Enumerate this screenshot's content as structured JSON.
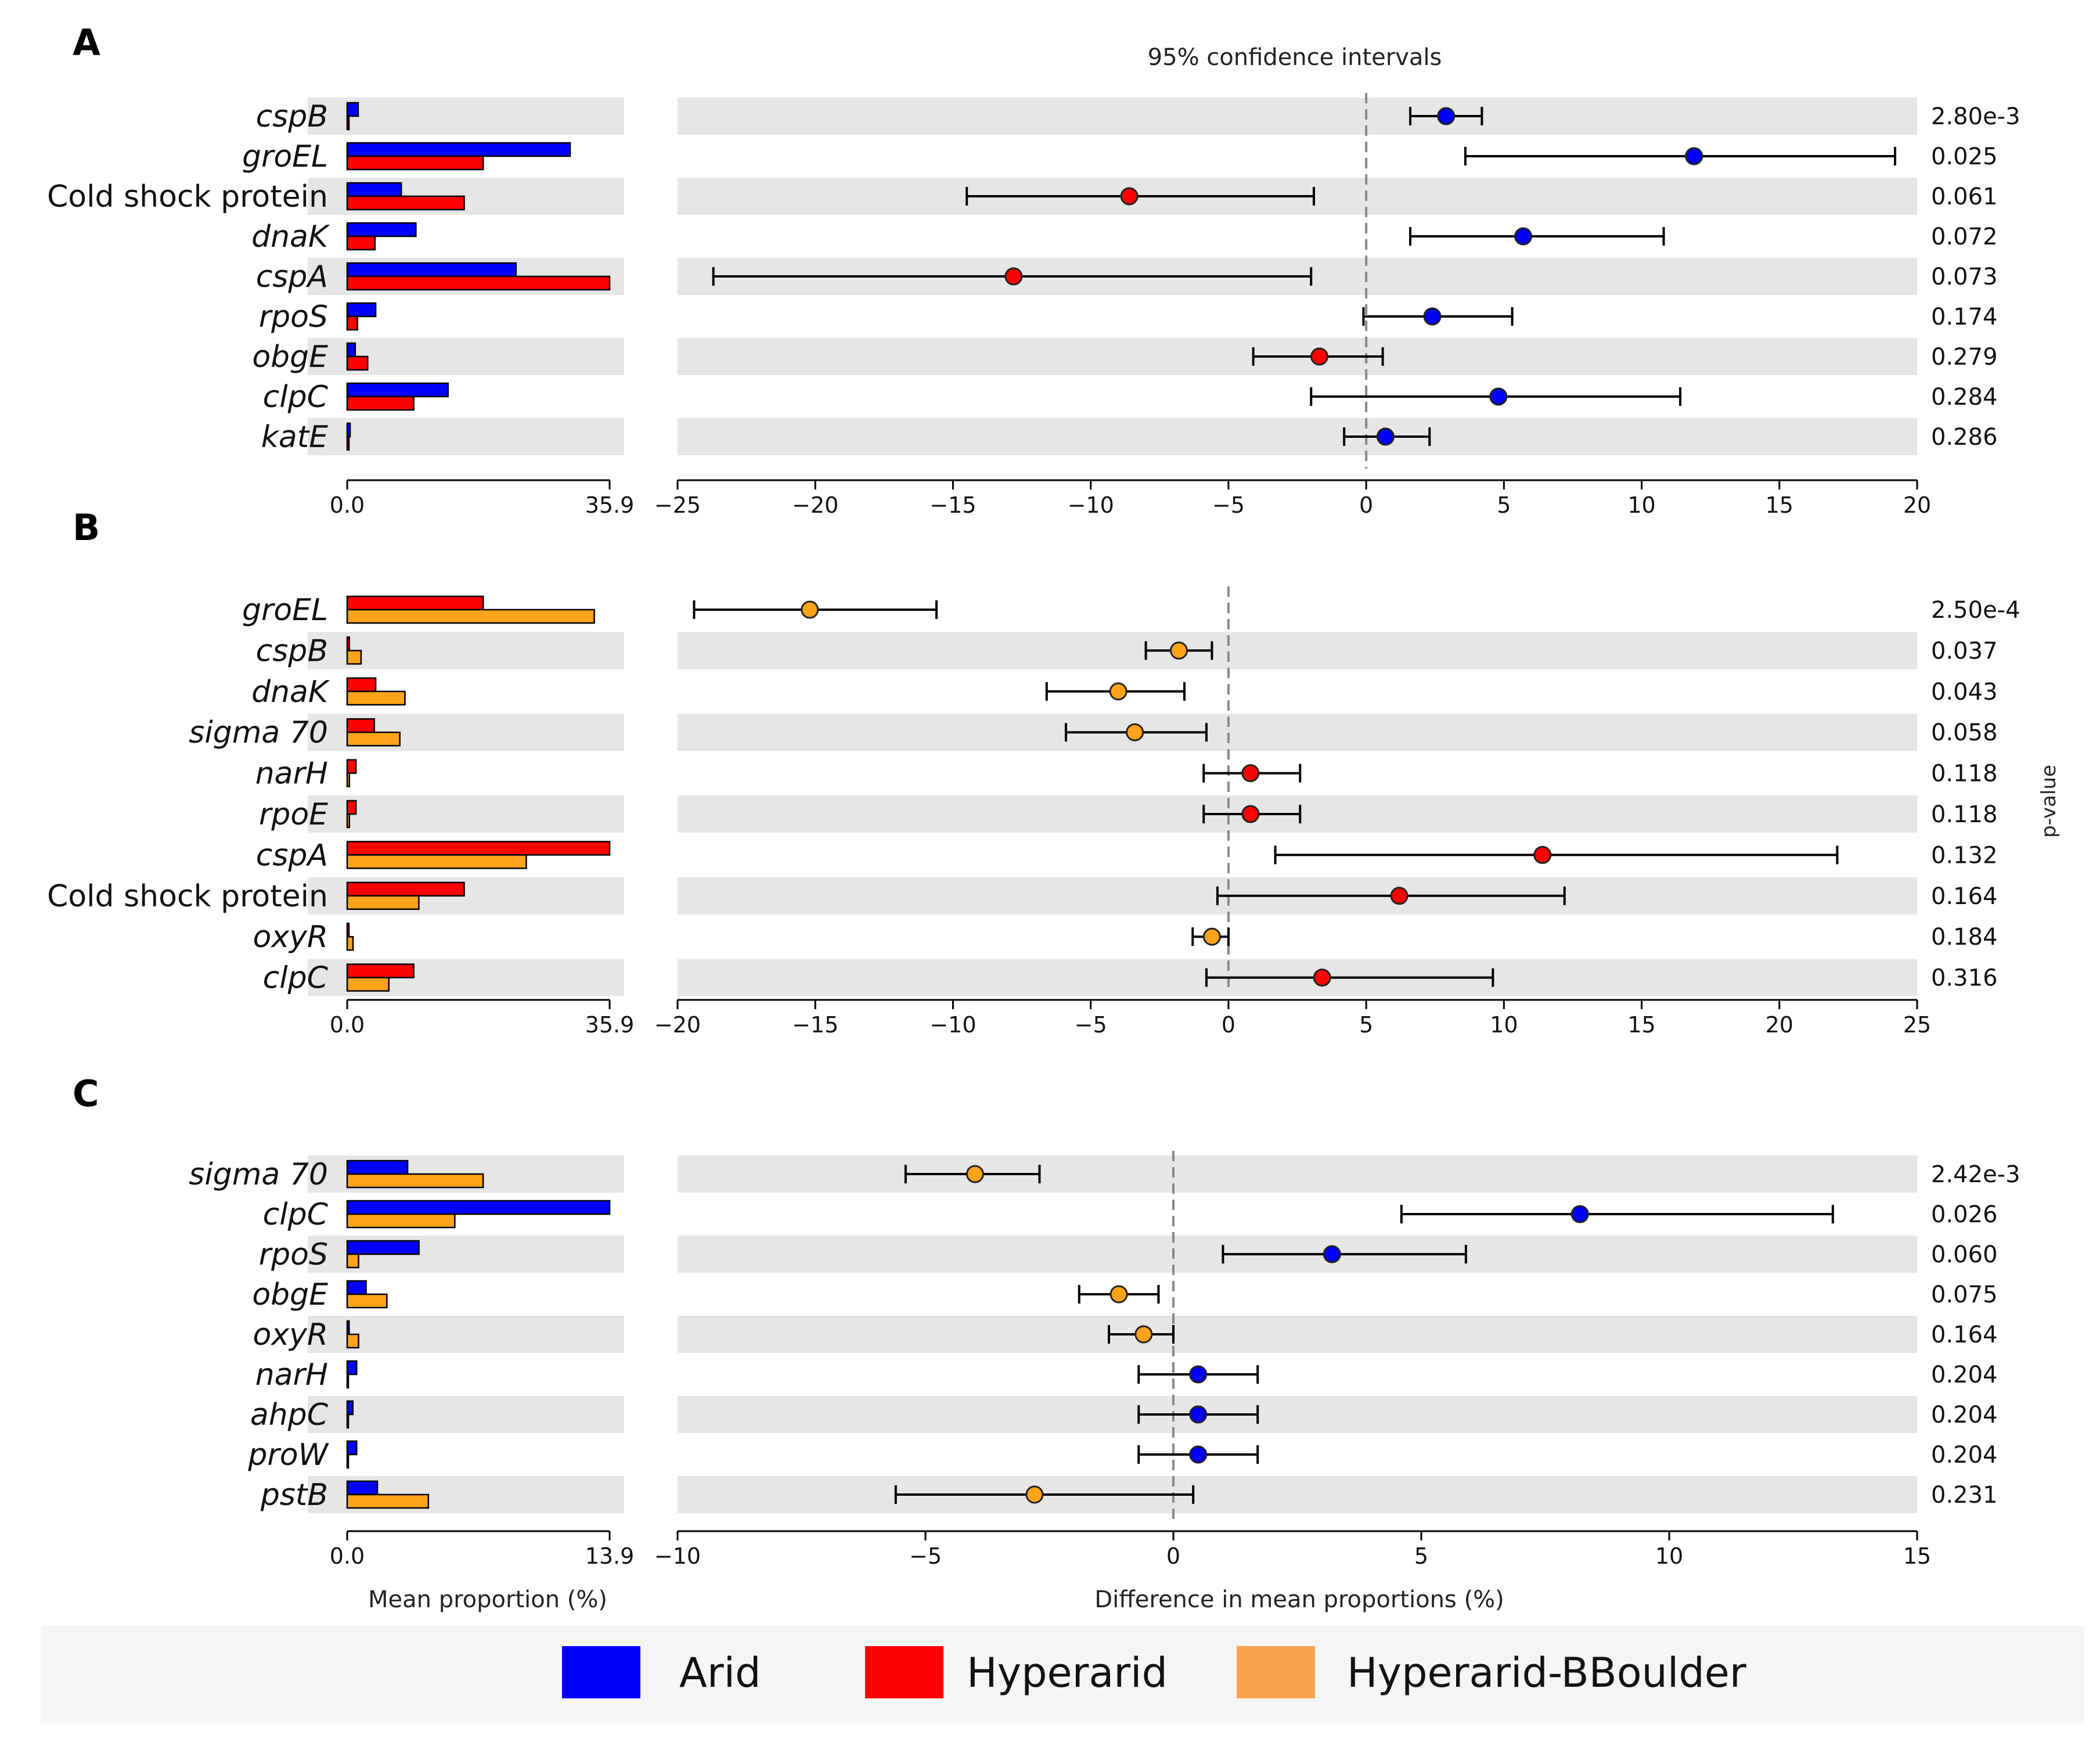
{
  "figure": {
    "ci_title": "95% confidence intervals",
    "pvalue_label": "p-value",
    "xlabel_left": "Mean proportion (%)",
    "xlabel_right": "Difference in mean proportions (%)"
  },
  "legend": [
    {
      "name": "Arid",
      "color": "#0000ff"
    },
    {
      "name": "Hyperarid",
      "color": "#ff0000"
    },
    {
      "name": "Hyperarid-BBoulder",
      "color": "#ffa31a"
    }
  ],
  "colors": {
    "Arid": "#0000ff",
    "Hyperarid": "#ff0000",
    "Hyperarid-BBoulder": "#ffa31a",
    "band": "#e6e6e6",
    "legend_orange": "#f9a24c"
  },
  "chart_data": [
    {
      "panel": "A",
      "type": "scatter",
      "groups": [
        "Arid",
        "Hyperarid"
      ],
      "bar_max": 35.9,
      "bar_ticks": [
        "0.0",
        "35.9"
      ],
      "xlim": [
        -25,
        20
      ],
      "xticks": [
        -25,
        -20,
        -15,
        -10,
        -5,
        0,
        5,
        10,
        15,
        20
      ],
      "rows": [
        {
          "feature": "cspB",
          "italic": true,
          "bars": [
            1.5,
            0.2
          ],
          "diff": 2.9,
          "ci": [
            1.6,
            4.2
          ],
          "dot": "Arid",
          "p": "2.80e-3"
        },
        {
          "feature": "groEL",
          "italic": true,
          "bars": [
            30.5,
            18.6
          ],
          "diff": 11.9,
          "ci": [
            3.6,
            19.2
          ],
          "dot": "Arid",
          "p": "0.025"
        },
        {
          "feature": "Cold shock protein",
          "italic": false,
          "bars": [
            7.4,
            16.0
          ],
          "diff": -8.6,
          "ci": [
            -14.5,
            -1.9
          ],
          "dot": "Hyperarid",
          "p": "0.061"
        },
        {
          "feature": "dnaK",
          "italic": true,
          "bars": [
            9.4,
            3.8
          ],
          "diff": 5.7,
          "ci": [
            1.6,
            10.8
          ],
          "dot": "Arid",
          "p": "0.072"
        },
        {
          "feature": "cspA",
          "italic": true,
          "bars": [
            23.1,
            35.9
          ],
          "diff": -12.8,
          "ci": [
            -23.7,
            -2.0
          ],
          "dot": "Hyperarid",
          "p": "0.073"
        },
        {
          "feature": "rpoS",
          "italic": true,
          "bars": [
            3.9,
            1.4
          ],
          "diff": 2.4,
          "ci": [
            -0.1,
            5.3
          ],
          "dot": "Arid",
          "p": "0.174"
        },
        {
          "feature": "obgE",
          "italic": true,
          "bars": [
            1.1,
            2.8
          ],
          "diff": -1.7,
          "ci": [
            -4.1,
            0.6
          ],
          "dot": "Hyperarid",
          "p": "0.279"
        },
        {
          "feature": "clpC",
          "italic": true,
          "bars": [
            13.8,
            9.1
          ],
          "diff": 4.8,
          "ci": [
            -2.0,
            11.4
          ],
          "dot": "Arid",
          "p": "0.284"
        },
        {
          "feature": "katE",
          "italic": true,
          "bars": [
            0.4,
            0.1
          ],
          "diff": 0.7,
          "ci": [
            -0.8,
            2.3
          ],
          "dot": "Arid",
          "p": "0.286"
        }
      ]
    },
    {
      "panel": "B",
      "type": "scatter",
      "groups": [
        "Hyperarid",
        "Hyperarid-BBoulder"
      ],
      "bar_max": 35.9,
      "bar_ticks": [
        "0.0",
        "35.9"
      ],
      "xlim": [
        -20,
        25
      ],
      "xticks": [
        -20,
        -15,
        -10,
        -5,
        0,
        5,
        10,
        15,
        20,
        25
      ],
      "rows": [
        {
          "feature": "groEL",
          "italic": true,
          "bars": [
            18.6,
            33.8
          ],
          "diff": -15.2,
          "ci": [
            -19.4,
            -10.6
          ],
          "dot": "Hyperarid-BBoulder",
          "p": "2.50e-4"
        },
        {
          "feature": "cspB",
          "italic": true,
          "bars": [
            0.3,
            1.9
          ],
          "diff": -1.8,
          "ci": [
            -3.0,
            -0.6
          ],
          "dot": "Hyperarid-BBoulder",
          "p": "0.037"
        },
        {
          "feature": "dnaK",
          "italic": true,
          "bars": [
            3.9,
            7.9
          ],
          "diff": -4.0,
          "ci": [
            -6.6,
            -1.6
          ],
          "dot": "Hyperarid-BBoulder",
          "p": "0.043"
        },
        {
          "feature": "sigma 70",
          "italic": true,
          "bars": [
            3.7,
            7.2
          ],
          "diff": -3.4,
          "ci": [
            -5.9,
            -0.8
          ],
          "dot": "Hyperarid-BBoulder",
          "p": "0.058"
        },
        {
          "feature": "narH",
          "italic": true,
          "bars": [
            1.2,
            0.3
          ],
          "diff": 0.8,
          "ci": [
            -0.9,
            2.6
          ],
          "dot": "Hyperarid",
          "p": "0.118"
        },
        {
          "feature": "rpoE",
          "italic": true,
          "bars": [
            1.2,
            0.3
          ],
          "diff": 0.8,
          "ci": [
            -0.9,
            2.6
          ],
          "dot": "Hyperarid",
          "p": "0.118"
        },
        {
          "feature": "cspA",
          "italic": true,
          "bars": [
            35.9,
            24.5
          ],
          "diff": 11.4,
          "ci": [
            1.7,
            22.1
          ],
          "dot": "Hyperarid",
          "p": "0.132"
        },
        {
          "feature": "Cold shock protein",
          "italic": false,
          "bars": [
            16.0,
            9.8
          ],
          "diff": 6.2,
          "ci": [
            -0.4,
            12.2
          ],
          "dot": "Hyperarid",
          "p": "0.164"
        },
        {
          "feature": "oxyR",
          "italic": true,
          "bars": [
            0.2,
            0.8
          ],
          "diff": -0.6,
          "ci": [
            -1.3,
            0.0
          ],
          "dot": "Hyperarid-BBoulder",
          "p": "0.184"
        },
        {
          "feature": "clpC",
          "italic": true,
          "bars": [
            9.1,
            5.7
          ],
          "diff": 3.4,
          "ci": [
            -0.8,
            9.6
          ],
          "dot": "Hyperarid",
          "p": "0.316"
        }
      ]
    },
    {
      "panel": "C",
      "type": "scatter",
      "groups": [
        "Arid",
        "Hyperarid-BBoulder"
      ],
      "bar_max": 13.9,
      "bar_ticks": [
        "0.0",
        "13.9"
      ],
      "xlim": [
        -10,
        15
      ],
      "xticks": [
        -10,
        -5,
        0,
        5,
        10,
        15
      ],
      "rows": [
        {
          "feature": "sigma 70",
          "italic": true,
          "bars": [
            3.2,
            7.2
          ],
          "diff": -4.0,
          "ci": [
            -5.4,
            -2.7
          ],
          "dot": "Hyperarid-BBoulder",
          "p": "2.42e-3"
        },
        {
          "feature": "clpC",
          "italic": true,
          "bars": [
            13.9,
            5.7
          ],
          "diff": 8.2,
          "ci": [
            4.6,
            13.3
          ],
          "dot": "Arid",
          "p": "0.026"
        },
        {
          "feature": "rpoS",
          "italic": true,
          "bars": [
            3.8,
            0.6
          ],
          "diff": 3.2,
          "ci": [
            1.0,
            5.9
          ],
          "dot": "Arid",
          "p": "0.060"
        },
        {
          "feature": "obgE",
          "italic": true,
          "bars": [
            1.0,
            2.1
          ],
          "diff": -1.1,
          "ci": [
            -1.9,
            -0.3
          ],
          "dot": "Hyperarid-BBoulder",
          "p": "0.075"
        },
        {
          "feature": "oxyR",
          "italic": true,
          "bars": [
            0.1,
            0.6
          ],
          "diff": -0.6,
          "ci": [
            -1.3,
            0.0
          ],
          "dot": "Hyperarid-BBoulder",
          "p": "0.164"
        },
        {
          "feature": "narH",
          "italic": true,
          "bars": [
            0.5,
            0.0
          ],
          "diff": 0.5,
          "ci": [
            -0.7,
            1.7
          ],
          "dot": "Arid",
          "p": "0.204"
        },
        {
          "feature": "ahpC",
          "italic": true,
          "bars": [
            0.3,
            0.0
          ],
          "diff": 0.5,
          "ci": [
            -0.7,
            1.7
          ],
          "dot": "Arid",
          "p": "0.204"
        },
        {
          "feature": "proW",
          "italic": true,
          "bars": [
            0.5,
            0.0
          ],
          "diff": 0.5,
          "ci": [
            -0.7,
            1.7
          ],
          "dot": "Arid",
          "p": "0.204"
        },
        {
          "feature": "pstB",
          "italic": true,
          "bars": [
            1.6,
            4.3
          ],
          "diff": -2.8,
          "ci": [
            -5.6,
            0.4
          ],
          "dot": "Hyperarid-BBoulder",
          "p": "0.231"
        }
      ]
    }
  ]
}
